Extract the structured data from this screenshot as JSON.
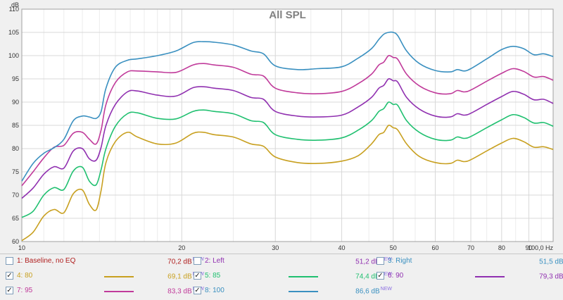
{
  "chart_data": {
    "type": "line",
    "title": "All SPL",
    "ylabel": "dB",
    "xlabel": "Hz",
    "x_scale": "log",
    "xlim": [
      10,
      100
    ],
    "ylim": [
      60,
      110
    ],
    "grid": true,
    "x_ticks": [
      10,
      20,
      30,
      40,
      50,
      60,
      70,
      80,
      90,
      100
    ],
    "x_tick_labels": [
      "10",
      "20",
      "30",
      "40",
      "50",
      "60",
      "70",
      "80",
      "90",
      "100,0 Hz"
    ],
    "y_ticks": [
      60,
      65,
      70,
      75,
      80,
      85,
      90,
      95,
      100,
      105,
      110
    ],
    "series": [
      {
        "name": "4: 80",
        "color": "#c8a020",
        "x": [
          10,
          10.5,
          11,
          11.5,
          12,
          12.5,
          13,
          13.4,
          13.8,
          14.1,
          14.4,
          15,
          15.8,
          16.5,
          18,
          19.5,
          21,
          22,
          23,
          25,
          27,
          28.5,
          30,
          33,
          36,
          40,
          43,
          45.5,
          47,
          48,
          49,
          50,
          51,
          53,
          56,
          60,
          64,
          66,
          68,
          70,
          75,
          80,
          84,
          88,
          92,
          96,
          100
        ],
        "y": [
          60.2,
          62,
          65.5,
          66.9,
          66.2,
          70.3,
          71.1,
          68,
          66.8,
          71,
          77,
          81.5,
          83.5,
          82.5,
          81,
          81.2,
          83.3,
          83.5,
          83,
          82.5,
          81,
          80.5,
          78.2,
          77,
          76.8,
          77.3,
          78.5,
          81,
          83,
          83.5,
          85,
          84.5,
          84,
          81,
          78.3,
          77,
          76.8,
          77.5,
          77.2,
          77.6,
          79.5,
          81.2,
          82.2,
          81.5,
          80.3,
          80.4,
          79.8
        ]
      },
      {
        "name": "5: 85",
        "color": "#20c070",
        "x": [
          10,
          10.5,
          11,
          11.5,
          12,
          12.5,
          13,
          13.4,
          13.8,
          14.1,
          14.4,
          15,
          15.8,
          16.5,
          18,
          19.5,
          21,
          22,
          23,
          25,
          27,
          28.5,
          30,
          33,
          36,
          40,
          43,
          45.5,
          47,
          48,
          49,
          50,
          51,
          53,
          56,
          60,
          64,
          66,
          68,
          70,
          75,
          80,
          84,
          88,
          92,
          96,
          100
        ],
        "y": [
          65.2,
          66.5,
          70,
          71.6,
          71.2,
          75.2,
          76,
          73,
          72.2,
          75.5,
          80,
          84.8,
          87.5,
          87.7,
          86.5,
          86.4,
          88,
          88.3,
          88,
          87.5,
          86,
          85.6,
          83,
          82,
          81.8,
          82.3,
          84,
          86,
          88,
          88.6,
          90,
          89.5,
          89.3,
          86,
          83.5,
          82,
          81.8,
          82.5,
          82.2,
          82.6,
          84.5,
          86.2,
          87.3,
          86.7,
          85.5,
          85.6,
          84.8
        ]
      },
      {
        "name": "6: 90",
        "color": "#9030b0",
        "x": [
          10,
          10.5,
          11,
          11.5,
          12,
          12.5,
          13,
          13.4,
          13.8,
          14.1,
          14.4,
          15,
          15.8,
          16.5,
          18,
          19.5,
          21,
          22,
          23,
          25,
          27,
          28.5,
          30,
          33,
          36,
          40,
          43,
          45.5,
          47,
          48,
          49,
          50,
          51,
          53,
          56,
          60,
          64,
          66,
          68,
          70,
          75,
          80,
          84,
          88,
          92,
          96,
          100
        ],
        "y": [
          69.3,
          71.5,
          74.5,
          76.1,
          75.8,
          79.5,
          80,
          77.8,
          77.5,
          80.3,
          85,
          89.5,
          92.2,
          92.4,
          91.5,
          91.3,
          93.1,
          93.3,
          93,
          92.5,
          91,
          90.6,
          88,
          87,
          86.8,
          87.2,
          89,
          91,
          93,
          93.6,
          95,
          94.6,
          94.3,
          91,
          88.5,
          87,
          86.8,
          87.5,
          87.2,
          87.6,
          89.5,
          91.2,
          92.3,
          91.7,
          90.5,
          90.6,
          89.7
        ]
      },
      {
        "name": "7: 95",
        "color": "#c03a9a",
        "x": [
          10,
          10.5,
          11,
          11.5,
          12,
          12.5,
          13,
          13.4,
          13.8,
          14.1,
          14.4,
          15,
          15.8,
          16.5,
          18,
          19.5,
          21,
          22,
          23,
          25,
          27,
          28.5,
          30,
          33,
          36,
          40,
          43,
          45.5,
          47,
          48,
          49,
          50,
          51,
          53,
          56,
          60,
          64,
          66,
          68,
          70,
          75,
          80,
          84,
          88,
          92,
          96,
          100
        ],
        "y": [
          72,
          75,
          78,
          80.3,
          80.7,
          83.3,
          83.5,
          82,
          81,
          84,
          89.5,
          94.2,
          96.5,
          96.7,
          96.5,
          96.4,
          98,
          98.3,
          98,
          97.5,
          96,
          95.6,
          93,
          92,
          91.8,
          92.3,
          94,
          96,
          98,
          98.6,
          100,
          99.6,
          99.2,
          96,
          93.5,
          92,
          91.8,
          92.5,
          92.2,
          92.6,
          94.5,
          96.2,
          97.2,
          96.6,
          95.4,
          95.5,
          94.7
        ]
      },
      {
        "name": "8: 100",
        "color": "#3a90c0",
        "x": [
          10,
          10.5,
          11,
          11.5,
          12,
          12.5,
          13,
          13.4,
          13.8,
          14.1,
          14.4,
          15,
          15.8,
          16.5,
          18,
          19.5,
          21,
          22,
          23,
          25,
          27,
          28.5,
          30,
          33,
          36,
          40,
          43,
          45.5,
          47,
          48,
          49,
          50,
          51,
          53,
          56,
          60,
          64,
          66,
          68,
          70,
          75,
          80,
          84,
          88,
          92,
          96,
          100
        ],
        "y": [
          73,
          76.8,
          79,
          80.2,
          82,
          86,
          87,
          86.8,
          86.5,
          88,
          93,
          97.5,
          99,
          99.3,
          100,
          101,
          102.8,
          103,
          102.9,
          102.3,
          101,
          100.4,
          97.8,
          97,
          97.2,
          97.6,
          99.5,
          101.5,
          103.5,
          104.6,
          105,
          105,
          104.3,
          101,
          98.3,
          96.8,
          96.5,
          97,
          96.7,
          97.2,
          99.3,
          101.3,
          102,
          101.5,
          100.2,
          100.4,
          99.8
        ]
      }
    ]
  },
  "legend": [
    {
      "label": "1: Baseline, no EQ",
      "value": "70,2 dB",
      "checked": false,
      "color": "#b02020",
      "show_swatch": false
    },
    {
      "label": "2: Left",
      "value": "51,2 dB",
      "checked": false,
      "color": "#9030b0",
      "show_swatch": false
    },
    {
      "label": "3: Right",
      "value": "51,5 dB",
      "checked": false,
      "color": "#3a90c0",
      "show_swatch": false
    },
    {
      "label": "4: 80",
      "value": "69,1 dB",
      "checked": true,
      "color": "#c8a020",
      "show_swatch": true
    },
    {
      "label": "5: 85",
      "value": "74,4 dB",
      "checked": true,
      "color": "#20c070",
      "show_swatch": true
    },
    {
      "label": "6: 90",
      "value": "79,3 dB",
      "checked": true,
      "color": "#9030b0",
      "show_swatch": true
    },
    {
      "label": "7: 95",
      "value": "83,3 dB",
      "checked": true,
      "color": "#c03a9a",
      "show_swatch": true
    },
    {
      "label": "8: 100",
      "value": "86,6 dB",
      "checked": true,
      "color": "#3a90c0",
      "show_swatch": true
    }
  ],
  "legend_new_tag": "NEW",
  "checkmark": "✓"
}
